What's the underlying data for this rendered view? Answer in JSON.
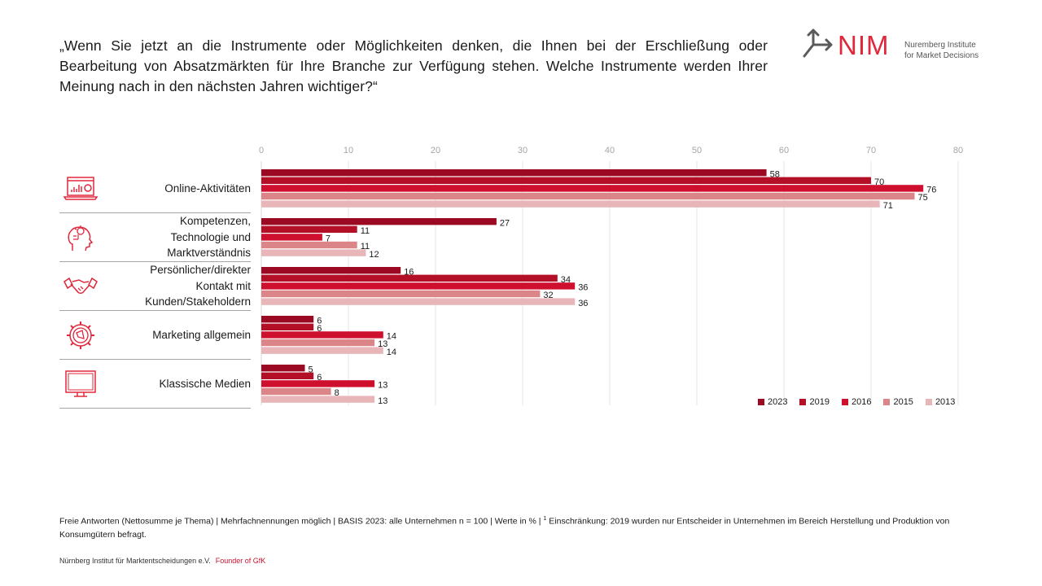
{
  "question": "„Wenn Sie jetzt an die Instrumente oder Möglichkeiten denken, die Ihnen bei der Erschließung oder Bearbeitung von Absatzmärkten für Ihre Branche zur Verfügung stehen. Welche Instrumente werden Ihrer Meinung nach in den nächsten Jahren wichtiger?“",
  "logo": {
    "mark": "NIM",
    "line1": "Nuremberg Institute",
    "line2": "for Market Decisions",
    "brand_color": "#e0283c"
  },
  "categories": [
    {
      "label": "Online-Aktivitäten",
      "icon": "laptop-analytics-icon"
    },
    {
      "label": "Kompetenzen,\nTechnologie und\nMarktverständnis",
      "icon": "head-gear-icon"
    },
    {
      "label": "Persönlicher/direkter\nKontakt mit\nKunden/Stakeholdern",
      "icon": "handshake-icon"
    },
    {
      "label": "Marketing allgemein",
      "icon": "gear-megaphone-icon"
    },
    {
      "label": "Klassische Medien",
      "icon": "monitor-icon"
    }
  ],
  "chart_data": {
    "type": "bar",
    "orientation": "horizontal",
    "title": "",
    "xlabel": "",
    "ylabel": "",
    "xlim": [
      0,
      80
    ],
    "x_ticks": [
      "0",
      "10",
      "20",
      "30",
      "40",
      "50",
      "60",
      "70",
      "80"
    ],
    "grid": true,
    "legend_position": "bottom-right",
    "categories": [
      "Online-Aktivitäten",
      "Kompetenzen, Technologie und Marktverständnis",
      "Persönlicher/direkter Kontakt mit Kunden/Stakeholdern",
      "Marketing allgemein",
      "Klassische Medien"
    ],
    "series": [
      {
        "name": "2023",
        "color": "#9b0a22",
        "values": [
          58,
          27,
          16,
          6,
          5
        ]
      },
      {
        "name": "2019",
        "color": "#b31028",
        "values": [
          70,
          11,
          34,
          6,
          6
        ]
      },
      {
        "name": "2016",
        "color": "#cf0f2e",
        "values": [
          76,
          7,
          36,
          14,
          13
        ]
      },
      {
        "name": "2015",
        "color": "#dc8589",
        "values": [
          75,
          11,
          32,
          13,
          8
        ]
      },
      {
        "name": "2013",
        "color": "#e8b5b8",
        "values": [
          71,
          12,
          36,
          14,
          13
        ]
      }
    ]
  },
  "footnote": {
    "main": "Freie Antworten  (Nettosumme  je Thema)  | Mehrfachnennungen  möglich | BASIS 2023: alle Unternehmen  n = 100 | Werte  in % | ",
    "sup": "1",
    "rest": " Einschränkung:  2019 wurden  nur Entscheider  in Unternehmen   im Bereich Herstellung  und Produktion von Konsumgütern  befragt."
  },
  "footer": {
    "org": "Nürnberg Institut für Marktentscheidungen e.V.",
    "founder": "Founder of GfK"
  }
}
